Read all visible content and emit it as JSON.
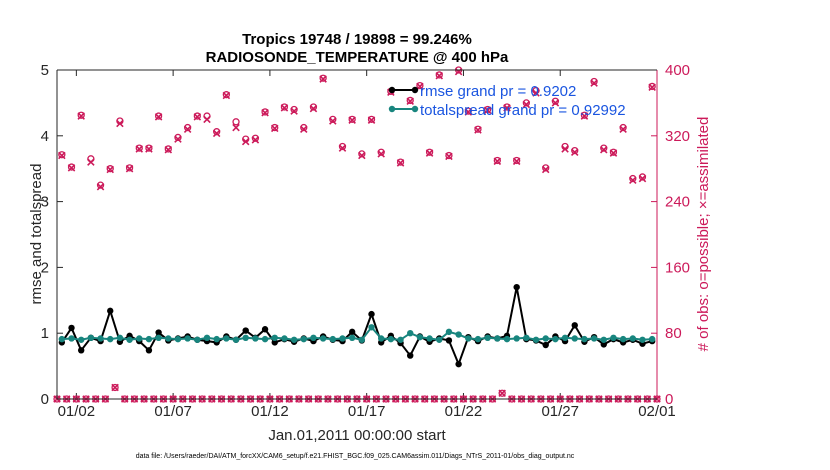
{
  "chart_data": {
    "type": "line",
    "title_line1": "Tropics 19748 / 19898 = 99.246%",
    "title_line2": "RADIOSONDE_TEMPERATURE @ 400 hPa",
    "ylabel_left": "rmse and totalspread",
    "ylabel_right": "# of obs: o=possible; ×=assimilated",
    "xlabel": "Jan.01,2011 00:00:00 start",
    "footnote": "data file: /Users/raeder/DAI/ATM_forcXX/CAM6_setup/f.e21.FHIST_BGC.f09_025.CAM6assim.011/Diags_NTrS_2011-01/obs_diag_output.nc",
    "ylim_left": [
      0,
      5
    ],
    "ylim_right": [
      0,
      400
    ],
    "xlim": [
      1,
      32
    ],
    "left_ticks": [
      "0",
      "1",
      "2",
      "3",
      "4",
      "5"
    ],
    "right_ticks": [
      "0",
      "80",
      "160",
      "240",
      "320",
      "400"
    ],
    "x_ticks": [
      {
        "x": 2,
        "label": "01/02"
      },
      {
        "x": 7,
        "label": "01/07"
      },
      {
        "x": 12,
        "label": "01/12"
      },
      {
        "x": 17,
        "label": "01/17"
      },
      {
        "x": 22,
        "label": "01/22"
      },
      {
        "x": 27,
        "label": "01/27"
      },
      {
        "x": 32,
        "label": "02/01"
      }
    ],
    "colors": {
      "rmse": "#000000",
      "spread": "#18857e",
      "obs": "#cc1a5a",
      "legend_text": "#1a55e0"
    },
    "legend": [
      {
        "name": "rmse",
        "label": "rmse grand pr = 0.9202"
      },
      {
        "name": "totalspread",
        "label": "totalspread grand pr = 0.92992"
      }
    ],
    "series": [
      {
        "name": "rmse",
        "axis": "left",
        "x": [
          1.25,
          1.75,
          2.25,
          2.75,
          3.25,
          3.75,
          4.25,
          4.75,
          5.25,
          5.75,
          6.25,
          6.75,
          7.25,
          7.75,
          8.25,
          8.75,
          9.25,
          9.75,
          10.25,
          10.75,
          11.25,
          11.75,
          12.25,
          12.75,
          13.25,
          13.75,
          14.25,
          14.75,
          15.25,
          15.75,
          16.25,
          16.75,
          17.25,
          17.75,
          18.25,
          18.75,
          19.25,
          19.75,
          20.25,
          20.75,
          21.25,
          21.75,
          22.25,
          22.75,
          23.25,
          23.75,
          24.25,
          24.75,
          25.25,
          25.75,
          26.25,
          26.75,
          27.25,
          27.75,
          28.25,
          28.75,
          29.25,
          29.75,
          30.25,
          30.75,
          31.25,
          31.75
        ],
        "values": [
          0.86,
          1.08,
          0.74,
          0.93,
          0.88,
          1.34,
          0.87,
          0.96,
          0.88,
          0.74,
          1.01,
          0.89,
          0.92,
          0.95,
          0.9,
          0.88,
          0.86,
          0.95,
          0.9,
          1.04,
          0.93,
          1.06,
          0.86,
          0.91,
          0.87,
          0.92,
          0.88,
          0.95,
          0.9,
          0.88,
          1.02,
          0.89,
          1.29,
          0.86,
          0.96,
          0.85,
          0.66,
          0.95,
          0.87,
          0.92,
          0.89,
          0.53,
          0.94,
          0.88,
          0.95,
          0.92,
          0.96,
          1.7,
          0.91,
          0.89,
          0.82,
          0.95,
          0.88,
          1.12,
          0.87,
          0.94,
          0.83,
          0.91,
          0.86,
          0.9,
          0.84,
          0.88
        ]
      },
      {
        "name": "totalspread",
        "axis": "left",
        "x": [
          1.25,
          1.75,
          2.25,
          2.75,
          3.25,
          3.75,
          4.25,
          4.75,
          5.25,
          5.75,
          6.25,
          6.75,
          7.25,
          7.75,
          8.25,
          8.75,
          9.25,
          9.75,
          10.25,
          10.75,
          11.25,
          11.75,
          12.25,
          12.75,
          13.25,
          13.75,
          14.25,
          14.75,
          15.25,
          15.75,
          16.25,
          16.75,
          17.25,
          17.75,
          18.25,
          18.75,
          19.25,
          19.75,
          20.25,
          20.75,
          21.25,
          21.75,
          22.25,
          22.75,
          23.25,
          23.75,
          24.25,
          24.75,
          25.25,
          25.75,
          26.25,
          26.75,
          27.25,
          27.75,
          28.25,
          28.75,
          29.25,
          29.75,
          30.25,
          30.75,
          31.25,
          31.75
        ],
        "values": [
          0.91,
          0.92,
          0.9,
          0.93,
          0.92,
          0.91,
          0.93,
          0.9,
          0.92,
          0.91,
          0.93,
          0.92,
          0.91,
          0.92,
          0.9,
          0.93,
          0.91,
          0.92,
          0.9,
          0.93,
          0.92,
          0.91,
          0.93,
          0.92,
          0.9,
          0.91,
          0.93,
          0.92,
          0.91,
          0.92,
          0.93,
          0.9,
          1.09,
          0.92,
          0.91,
          0.9,
          1.0,
          0.94,
          0.92,
          0.9,
          1.02,
          0.98,
          0.92,
          0.91,
          0.93,
          0.92,
          0.91,
          0.92,
          0.93,
          0.9,
          0.92,
          0.91,
          0.93,
          0.92,
          0.91,
          0.92,
          0.9,
          0.93,
          0.91,
          0.92,
          0.9,
          0.91
        ]
      },
      {
        "name": "obs_possible",
        "axis": "right",
        "x": [
          1.25,
          1.75,
          2.25,
          2.75,
          3.25,
          3.75,
          4.25,
          4.75,
          5.25,
          5.75,
          6.25,
          6.75,
          7.25,
          7.75,
          8.25,
          8.75,
          9.25,
          9.75,
          10.25,
          10.75,
          11.25,
          11.75,
          12.25,
          12.75,
          13.25,
          13.75,
          14.25,
          14.75,
          15.25,
          15.75,
          16.25,
          16.75,
          17.25,
          17.75,
          18.25,
          18.75,
          19.25,
          19.75,
          20.25,
          20.75,
          21.25,
          21.75,
          22.25,
          22.75,
          23.25,
          23.75,
          24.25,
          24.75,
          25.25,
          25.75,
          26.25,
          26.75,
          27.25,
          27.75,
          28.25,
          28.75,
          29.25,
          29.75,
          30.25,
          30.75,
          31.25,
          31.75
        ],
        "values": [
          297,
          282,
          345,
          292,
          260,
          280,
          338,
          281,
          305,
          305,
          344,
          304,
          318,
          330,
          344,
          344,
          325,
          370,
          337,
          316,
          317,
          349,
          330,
          355,
          352,
          330,
          355,
          390,
          340,
          307,
          340,
          298,
          340,
          300,
          374,
          288,
          363,
          381,
          300,
          394,
          296,
          400,
          350,
          328,
          352,
          290,
          355,
          290,
          360,
          375,
          281,
          362,
          307,
          302,
          345,
          386,
          305,
          300,
          330,
          268,
          270,
          380
        ]
      },
      {
        "name": "obs_assimilated",
        "axis": "right",
        "x": [
          1.25,
          1.75,
          2.25,
          2.75,
          3.25,
          3.75,
          4.25,
          4.75,
          5.25,
          5.75,
          6.25,
          6.75,
          7.25,
          7.75,
          8.25,
          8.75,
          9.25,
          9.75,
          10.25,
          10.75,
          11.25,
          11.75,
          12.25,
          12.75,
          13.25,
          13.75,
          14.25,
          14.75,
          15.25,
          15.75,
          16.25,
          16.75,
          17.25,
          17.75,
          18.25,
          18.75,
          19.25,
          19.75,
          20.25,
          20.75,
          21.25,
          21.75,
          22.25,
          22.75,
          23.25,
          23.75,
          24.25,
          24.75,
          25.25,
          25.75,
          26.25,
          26.75,
          27.25,
          27.75,
          28.25,
          28.75,
          29.25,
          29.75,
          30.25,
          30.75,
          31.25,
          31.75
        ],
        "values": [
          296,
          281,
          344,
          288,
          258,
          279,
          335,
          280,
          304,
          304,
          343,
          303,
          316,
          328,
          343,
          340,
          323,
          369,
          330,
          313,
          315,
          348,
          329,
          354,
          350,
          328,
          353,
          389,
          338,
          305,
          339,
          296,
          339,
          298,
          373,
          287,
          362,
          380,
          299,
          393,
          295,
          398,
          349,
          327,
          351,
          289,
          354,
          289,
          358,
          372,
          279,
          360,
          304,
          300,
          344,
          384,
          303,
          299,
          328,
          266,
          268,
          379
        ]
      },
      {
        "name": "obs_zero_possible",
        "axis": "right",
        "x": [
          1.0,
          1.5,
          2.0,
          2.5,
          3.0,
          3.5,
          4.0,
          4.5,
          5.0,
          5.5,
          6.0,
          6.5,
          7.0,
          7.5,
          8.0,
          8.5,
          9.0,
          9.5,
          10.0,
          10.5,
          11.0,
          11.5,
          12.0,
          12.5,
          13.0,
          13.5,
          14.0,
          14.5,
          15.0,
          15.5,
          16.0,
          16.5,
          17.0,
          17.5,
          18.0,
          18.5,
          19.0,
          19.5,
          20.0,
          20.5,
          21.0,
          21.5,
          22.0,
          22.5,
          23.0,
          23.5,
          24.0,
          24.5,
          25.0,
          25.5,
          26.0,
          26.5,
          27.0,
          27.5,
          28.0,
          28.5,
          29.0,
          29.5,
          30.0,
          30.5,
          31.0,
          31.5,
          32.0
        ],
        "values": [
          0,
          0,
          0,
          0,
          0,
          0,
          14,
          0,
          0,
          0,
          0,
          0,
          0,
          0,
          0,
          0,
          0,
          0,
          0,
          0,
          0,
          0,
          0,
          0,
          0,
          0,
          0,
          0,
          0,
          0,
          0,
          0,
          0,
          0,
          0,
          0,
          0,
          0,
          0,
          0,
          0,
          0,
          0,
          0,
          0,
          0,
          7,
          0,
          0,
          0,
          0,
          0,
          0,
          0,
          0,
          0,
          0,
          0,
          0,
          0,
          0,
          0,
          0
        ]
      }
    ]
  }
}
